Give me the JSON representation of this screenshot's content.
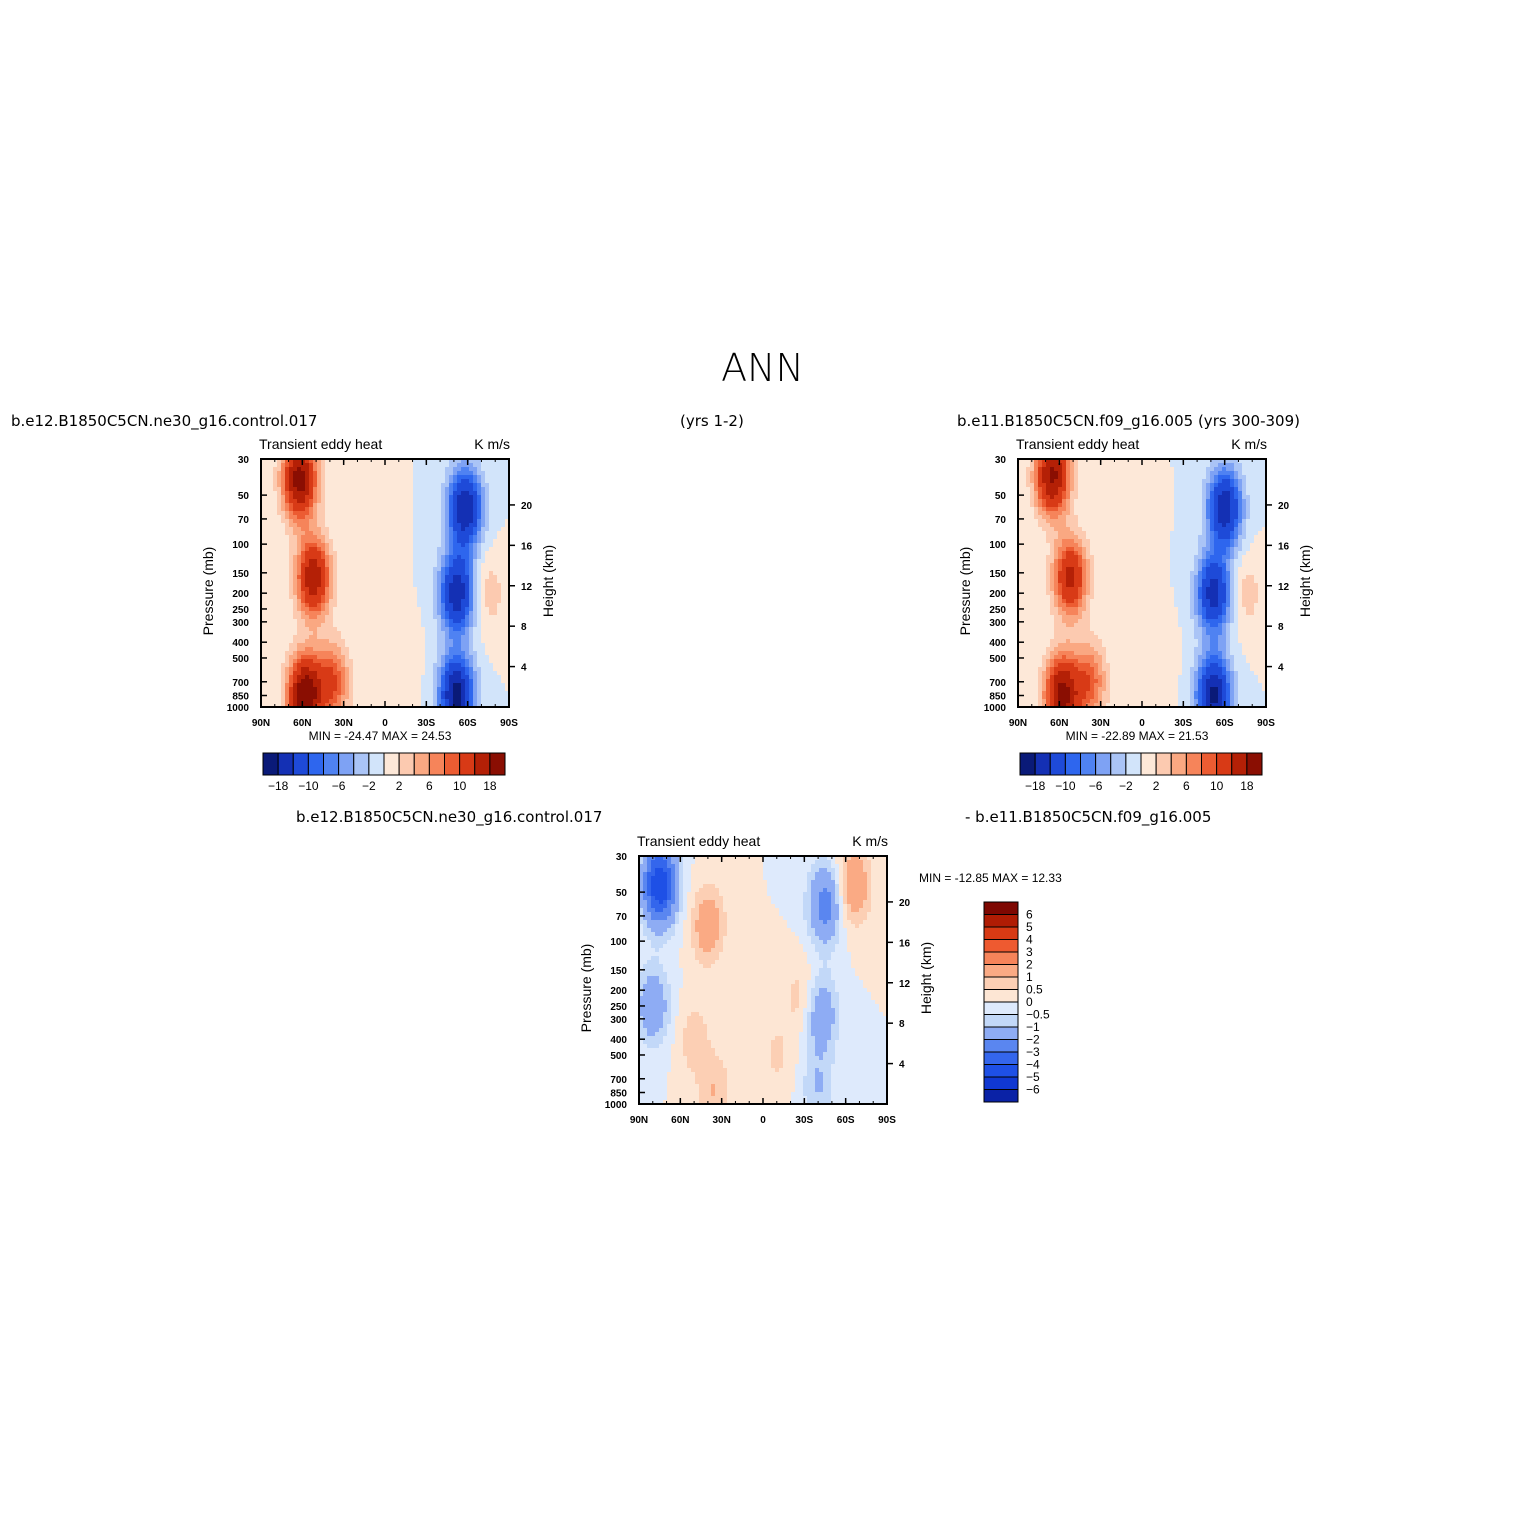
{
  "page_title": "ANN",
  "header": {
    "case1": "b.e12.B1850C5CN.ne30_g16.control.017",
    "yrs1": "(yrs 1-2)",
    "case2": "b.e11.B1850C5CN.f09_g16.005 (yrs 300-309)",
    "diff_case1": "b.e12.B1850C5CN.ne30_g16.control.017",
    "diff_case2": "- b.e11.B1850C5CN.f09_g16.005"
  },
  "colors": {
    "abs_levels": [
      "#0a1a78",
      "#1430b4",
      "#1e4ad8",
      "#2e66ee",
      "#4f82f2",
      "#7ea2f4",
      "#aac4f6",
      "#d2e4fa",
      "#fde8d8",
      "#fccab0",
      "#faa882",
      "#f6845a",
      "#ec5c32",
      "#d83a16",
      "#b42006",
      "#8a0e02"
    ],
    "diff_levels": [
      "#08127a",
      "#0a22a6",
      "#1038d2",
      "#1e50e6",
      "#3466ec",
      "#5a86f0",
      "#8eacf4",
      "#c2d8f8",
      "#deeafc",
      "#fde6d4",
      "#fccfb4",
      "#faaa84",
      "#f6845a",
      "#ee5a30",
      "#d83a14",
      "#b01c04",
      "#7e0802"
    ]
  },
  "chart_data": [
    {
      "type": "heatmap",
      "panel": "control",
      "title_left": "Transient eddy heat",
      "title_right": "K m/s",
      "ylabel": "Pressure (mb)",
      "ylabel_right": "Height (km)",
      "x_ticks": [
        "90N",
        "60N",
        "30N",
        "0",
        "30S",
        "60S",
        "90S"
      ],
      "y_ticks": [
        "30",
        "50",
        "70",
        "100",
        "150",
        "200",
        "250",
        "300",
        "400",
        "500",
        "700",
        "850",
        "1000"
      ],
      "y_right_ticks": [
        "20",
        "16",
        "12",
        "8",
        "4"
      ],
      "stats": "MIN = -24.47   MAX =  24.53",
      "min": -24.47,
      "max": 24.53,
      "colorbar_labels": [
        "-18",
        "-10",
        "-6",
        "-2",
        "2",
        "6",
        "10",
        "18"
      ],
      "blobs": [
        {
          "lat": 62,
          "p": 40,
          "v": 20
        },
        {
          "lat": 52,
          "p": 160,
          "v": 17
        },
        {
          "lat": 58,
          "p": 850,
          "v": 22
        },
        {
          "lat": 38,
          "p": 700,
          "v": 10
        },
        {
          "lat": 8,
          "p": 80,
          "v": 1.2
        },
        {
          "lat": -12,
          "p": 500,
          "v": 1.5
        },
        {
          "lat": -58,
          "p": 60,
          "v": -18
        },
        {
          "lat": -52,
          "p": 200,
          "v": -17
        },
        {
          "lat": -52,
          "p": 850,
          "v": -20
        },
        {
          "lat": -76,
          "p": 200,
          "v": 3
        }
      ]
    },
    {
      "type": "heatmap",
      "panel": "reference",
      "title_left": "Transient eddy heat",
      "title_right": "K m/s",
      "ylabel": "Pressure (mb)",
      "ylabel_right": "Height (km)",
      "x_ticks": [
        "90N",
        "60N",
        "30N",
        "0",
        "30S",
        "60S",
        "90S"
      ],
      "y_ticks": [
        "30",
        "50",
        "70",
        "100",
        "150",
        "200",
        "250",
        "300",
        "400",
        "500",
        "700",
        "850",
        "1000"
      ],
      "y_right_ticks": [
        "20",
        "16",
        "12",
        "8",
        "4"
      ],
      "stats": "MIN = -22.89   MAX =  21.53",
      "min": -22.89,
      "max": 21.53,
      "colorbar_labels": [
        "-18",
        "-10",
        "-6",
        "-2",
        "2",
        "6",
        "10",
        "18"
      ],
      "blobs": [
        {
          "lat": 65,
          "p": 38,
          "v": 19
        },
        {
          "lat": 52,
          "p": 160,
          "v": 15
        },
        {
          "lat": 58,
          "p": 850,
          "v": 20
        },
        {
          "lat": 38,
          "p": 700,
          "v": 9
        },
        {
          "lat": 8,
          "p": 80,
          "v": 1.2
        },
        {
          "lat": -12,
          "p": 500,
          "v": 1.5
        },
        {
          "lat": -60,
          "p": 60,
          "v": -17
        },
        {
          "lat": -52,
          "p": 200,
          "v": -16
        },
        {
          "lat": -52,
          "p": 850,
          "v": -19
        },
        {
          "lat": -76,
          "p": 200,
          "v": 3
        }
      ]
    },
    {
      "type": "heatmap",
      "panel": "difference",
      "title_left": "Transient eddy heat",
      "title_right": "K m/s",
      "ylabel": "Pressure (mb)",
      "ylabel_right": "Height (km)",
      "x_ticks": [
        "90N",
        "60N",
        "30N",
        "0",
        "30S",
        "60S",
        "90S"
      ],
      "y_ticks": [
        "30",
        "50",
        "70",
        "100",
        "150",
        "200",
        "250",
        "300",
        "400",
        "500",
        "700",
        "850",
        "1000"
      ],
      "y_right_ticks": [
        "20",
        "16",
        "12",
        "8",
        "4"
      ],
      "stats": "MIN = -12.85   MAX =  12.33",
      "min": -12.85,
      "max": 12.33,
      "colorbar_labels": [
        "6",
        "5",
        "4",
        "3",
        "2",
        "1",
        "0.5",
        "0",
        "-0.5",
        "-1",
        "-2",
        "-3",
        "-4",
        "-5",
        "-6"
      ],
      "blobs": [
        {
          "lat": 75,
          "p": 45,
          "v": -5
        },
        {
          "lat": 80,
          "p": 250,
          "v": -1.8
        },
        {
          "lat": 40,
          "p": 80,
          "v": 1.6
        },
        {
          "lat": 50,
          "p": 400,
          "v": 0.8
        },
        {
          "lat": 35,
          "p": 850,
          "v": 1.0
        },
        {
          "lat": -45,
          "p": 60,
          "v": -2.5
        },
        {
          "lat": -66,
          "p": 45,
          "v": 1.8
        },
        {
          "lat": -42,
          "p": 280,
          "v": -1.8
        },
        {
          "lat": -28,
          "p": 220,
          "v": 0.8
        },
        {
          "lat": -40,
          "p": 800,
          "v": -1.0
        },
        {
          "lat": -10,
          "p": 500,
          "v": 0.6
        }
      ]
    }
  ]
}
